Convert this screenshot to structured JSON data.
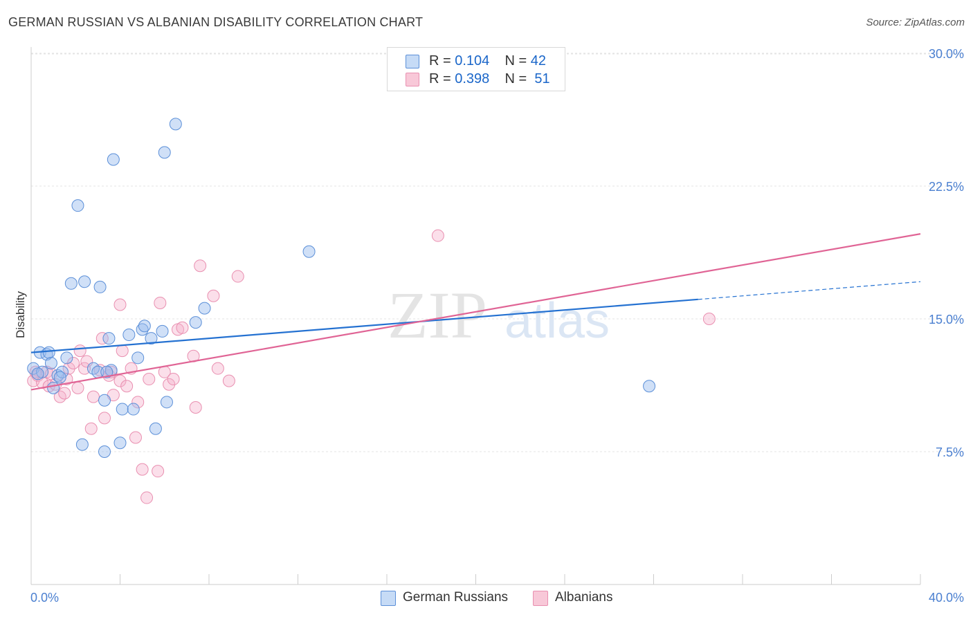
{
  "header": {
    "title": "GERMAN RUSSIAN VS ALBANIAN DISABILITY CORRELATION CHART",
    "source": "Source: ZipAtlas.com"
  },
  "watermark": {
    "zip": "ZIP",
    "atlas": "atlas"
  },
  "legend": {
    "rows": [
      {
        "r_label": "R = ",
        "r_value": "0.104",
        "n_label": "N = ",
        "n_value": "42"
      },
      {
        "r_label": "R = ",
        "r_value": "0.398",
        "n_label": "N = ",
        "n_value": "51"
      }
    ]
  },
  "chart_data": {
    "type": "scatter",
    "title": "GERMAN RUSSIAN VS ALBANIAN DISABILITY CORRELATION CHART",
    "xlabel": "",
    "ylabel": "Disability",
    "xlim": [
      0,
      40
    ],
    "ylim": [
      0,
      31
    ],
    "x_tick_labels": [
      "0.0%",
      "40.0%"
    ],
    "y_ticks": [
      7.5,
      15.0,
      22.5,
      30.0
    ],
    "y_tick_labels": [
      "7.5%",
      "15.0%",
      "22.5%",
      "30.0%"
    ],
    "grid": true,
    "legend_position": "top-center",
    "colors": {
      "german": "#5b8fd8",
      "albanian": "#e98fb0",
      "german_line": "#2471d1",
      "albanian_line": "#e06495"
    },
    "series": [
      {
        "name": "German Russians",
        "r": 0.104,
        "n": 42,
        "trend": {
          "x0": 0,
          "y0": 13.1,
          "x1": 30,
          "y1": 16.1,
          "dash_to_x": 40,
          "dash_to_y": 17.1
        },
        "points": [
          [
            0.1,
            12.2
          ],
          [
            0.4,
            13.1
          ],
          [
            0.7,
            13.0
          ],
          [
            0.8,
            13.1
          ],
          [
            0.5,
            12.0
          ],
          [
            0.9,
            12.5
          ],
          [
            1.0,
            11.1
          ],
          [
            1.2,
            11.8
          ],
          [
            1.4,
            12.0
          ],
          [
            1.6,
            12.8
          ],
          [
            1.8,
            17.0
          ],
          [
            2.1,
            21.4
          ],
          [
            2.3,
            7.9
          ],
          [
            2.4,
            17.1
          ],
          [
            2.8,
            12.2
          ],
          [
            3.0,
            12.0
          ],
          [
            3.1,
            16.8
          ],
          [
            3.3,
            7.5
          ],
          [
            3.3,
            10.4
          ],
          [
            3.5,
            13.9
          ],
          [
            3.6,
            12.1
          ],
          [
            3.7,
            24.0
          ],
          [
            4.0,
            8.0
          ],
          [
            4.1,
            9.9
          ],
          [
            4.4,
            14.1
          ],
          [
            4.6,
            9.9
          ],
          [
            4.8,
            12.8
          ],
          [
            5.0,
            14.4
          ],
          [
            5.1,
            14.6
          ],
          [
            5.4,
            13.9
          ],
          [
            5.6,
            8.8
          ],
          [
            5.9,
            14.3
          ],
          [
            6.0,
            24.4
          ],
          [
            6.1,
            10.3
          ],
          [
            6.5,
            26.0
          ],
          [
            7.4,
            14.8
          ],
          [
            7.8,
            15.6
          ],
          [
            12.5,
            18.8
          ],
          [
            27.8,
            11.2
          ],
          [
            0.3,
            11.9
          ],
          [
            1.3,
            11.7
          ],
          [
            3.4,
            12.0
          ]
        ]
      },
      {
        "name": "Albanians",
        "r": 0.398,
        "n": 51,
        "trend": {
          "x0": 0,
          "y0": 11.0,
          "x1": 40,
          "y1": 19.8
        },
        "points": [
          [
            0.1,
            11.5
          ],
          [
            0.2,
            12.0
          ],
          [
            0.3,
            11.8
          ],
          [
            0.5,
            11.4
          ],
          [
            0.7,
            12.0
          ],
          [
            0.8,
            11.2
          ],
          [
            0.9,
            11.9
          ],
          [
            1.1,
            11.3
          ],
          [
            1.3,
            10.6
          ],
          [
            1.5,
            10.8
          ],
          [
            1.6,
            11.6
          ],
          [
            1.7,
            12.2
          ],
          [
            1.9,
            12.5
          ],
          [
            2.1,
            11.1
          ],
          [
            2.2,
            13.2
          ],
          [
            2.4,
            12.2
          ],
          [
            2.5,
            12.6
          ],
          [
            2.7,
            8.8
          ],
          [
            2.8,
            10.6
          ],
          [
            3.1,
            12.1
          ],
          [
            3.2,
            13.9
          ],
          [
            3.3,
            9.4
          ],
          [
            3.5,
            11.8
          ],
          [
            3.6,
            12.0
          ],
          [
            3.7,
            10.7
          ],
          [
            4.0,
            11.5
          ],
          [
            4.0,
            15.8
          ],
          [
            4.1,
            13.2
          ],
          [
            4.3,
            11.2
          ],
          [
            4.5,
            12.2
          ],
          [
            4.7,
            8.3
          ],
          [
            4.8,
            10.3
          ],
          [
            5.0,
            6.5
          ],
          [
            5.2,
            4.9
          ],
          [
            5.3,
            11.6
          ],
          [
            5.7,
            6.4
          ],
          [
            5.8,
            15.9
          ],
          [
            6.0,
            12.0
          ],
          [
            6.2,
            11.3
          ],
          [
            6.4,
            11.6
          ],
          [
            6.6,
            14.4
          ],
          [
            6.8,
            14.5
          ],
          [
            7.3,
            12.9
          ],
          [
            7.4,
            10.0
          ],
          [
            7.6,
            18.0
          ],
          [
            8.2,
            16.3
          ],
          [
            8.4,
            12.2
          ],
          [
            8.9,
            11.5
          ],
          [
            9.3,
            17.4
          ],
          [
            18.3,
            19.7
          ],
          [
            30.5,
            15.0
          ]
        ]
      }
    ]
  },
  "bottom_legend": {
    "german": "German Russians",
    "albanian": "Albanians"
  }
}
